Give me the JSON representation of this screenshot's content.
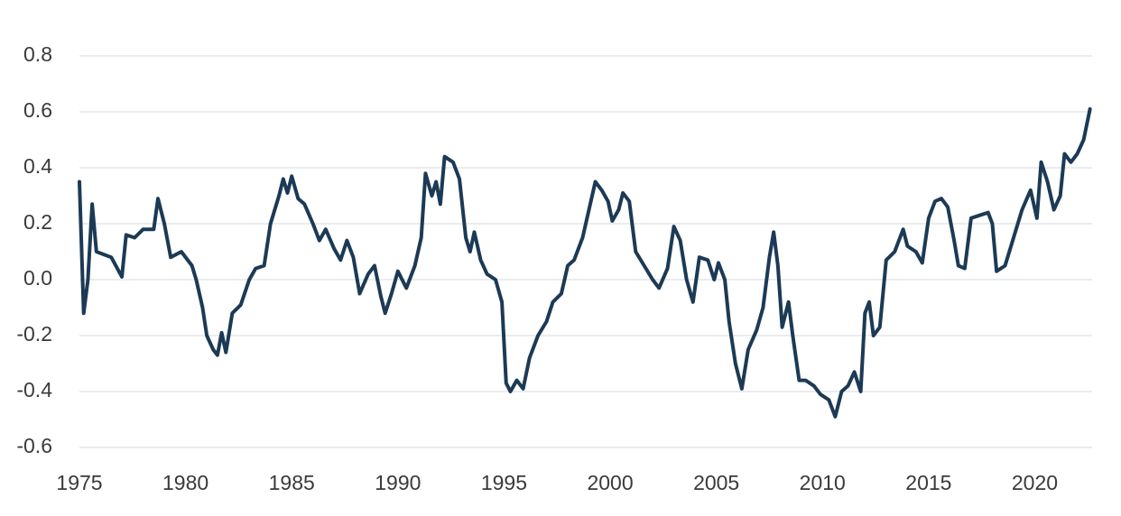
{
  "chart_data": {
    "type": "line",
    "x": [
      1975.0,
      1975.2,
      1975.4,
      1975.6,
      1975.8,
      1976.5,
      1977.0,
      1977.2,
      1977.6,
      1978.0,
      1978.5,
      1978.7,
      1979.0,
      1979.3,
      1979.8,
      1980.3,
      1980.5,
      1980.8,
      1981.0,
      1981.3,
      1981.5,
      1981.7,
      1981.9,
      1982.2,
      1982.6,
      1983.0,
      1983.3,
      1983.7,
      1984.0,
      1984.4,
      1984.6,
      1984.8,
      1985.0,
      1985.3,
      1985.6,
      1986.0,
      1986.3,
      1986.6,
      1987.0,
      1987.3,
      1987.6,
      1987.9,
      1988.2,
      1988.6,
      1988.9,
      1989.2,
      1989.4,
      1989.7,
      1990.0,
      1990.4,
      1990.8,
      1991.1,
      1991.3,
      1991.6,
      1991.8,
      1992.0,
      1992.2,
      1992.6,
      1992.9,
      1993.2,
      1993.4,
      1993.6,
      1993.9,
      1994.2,
      1994.6,
      1994.9,
      1995.1,
      1995.3,
      1995.6,
      1995.9,
      1996.2,
      1996.6,
      1997.0,
      1997.3,
      1997.7,
      1998.0,
      1998.3,
      1998.7,
      1999.0,
      1999.3,
      1999.6,
      1999.9,
      2000.1,
      2000.4,
      2000.6,
      2000.9,
      2001.2,
      2001.6,
      2002.0,
      2002.3,
      2002.7,
      2003.0,
      2003.3,
      2003.6,
      2003.9,
      2004.2,
      2004.6,
      2004.9,
      2005.1,
      2005.4,
      2005.6,
      2005.9,
      2006.2,
      2006.5,
      2006.9,
      2007.2,
      2007.5,
      2007.7,
      2007.9,
      2008.1,
      2008.4,
      2008.6,
      2008.9,
      2009.2,
      2009.6,
      2009.9,
      2010.3,
      2010.6,
      2010.9,
      2011.2,
      2011.5,
      2011.8,
      2012.0,
      2012.2,
      2012.4,
      2012.7,
      2013.0,
      2013.4,
      2013.8,
      2014.0,
      2014.4,
      2014.7,
      2015.0,
      2015.3,
      2015.6,
      2015.9,
      2016.2,
      2016.4,
      2016.7,
      2017.0,
      2017.4,
      2017.8,
      2018.0,
      2018.2,
      2018.6,
      2019.0,
      2019.4,
      2019.8,
      2020.1,
      2020.3,
      2020.6,
      2020.9,
      2021.2,
      2021.4,
      2021.7,
      2022.0,
      2022.3,
      2022.6
    ],
    "series": [
      {
        "color": "#1c3a55",
        "values": [
          0.35,
          -0.12,
          0.0,
          0.27,
          0.1,
          0.08,
          0.01,
          0.16,
          0.15,
          0.18,
          0.18,
          0.29,
          0.2,
          0.08,
          0.1,
          0.05,
          0.0,
          -0.1,
          -0.2,
          -0.25,
          -0.27,
          -0.19,
          -0.26,
          -0.12,
          -0.09,
          0.0,
          0.04,
          0.05,
          0.2,
          0.3,
          0.36,
          0.31,
          0.37,
          0.29,
          0.27,
          0.2,
          0.14,
          0.18,
          0.11,
          0.07,
          0.14,
          0.08,
          -0.05,
          0.02,
          0.05,
          -0.06,
          -0.12,
          -0.05,
          0.03,
          -0.03,
          0.05,
          0.15,
          0.38,
          0.3,
          0.35,
          0.27,
          0.44,
          0.42,
          0.36,
          0.15,
          0.1,
          0.17,
          0.07,
          0.02,
          0.0,
          -0.08,
          -0.37,
          -0.4,
          -0.36,
          -0.39,
          -0.28,
          -0.2,
          -0.15,
          -0.08,
          -0.05,
          0.05,
          0.07,
          0.15,
          0.25,
          0.35,
          0.32,
          0.28,
          0.21,
          0.25,
          0.31,
          0.28,
          0.1,
          0.05,
          0.0,
          -0.03,
          0.04,
          0.19,
          0.14,
          0.0,
          -0.08,
          0.08,
          0.07,
          0.0,
          0.06,
          0.0,
          -0.15,
          -0.3,
          -0.39,
          -0.25,
          -0.18,
          -0.1,
          0.08,
          0.17,
          0.05,
          -0.17,
          -0.08,
          -0.2,
          -0.36,
          -0.36,
          -0.38,
          -0.41,
          -0.43,
          -0.49,
          -0.4,
          -0.38,
          -0.33,
          -0.4,
          -0.12,
          -0.08,
          -0.2,
          -0.17,
          0.07,
          0.1,
          0.18,
          0.12,
          0.1,
          0.06,
          0.22,
          0.28,
          0.29,
          0.26,
          0.14,
          0.05,
          0.04,
          0.22,
          0.23,
          0.24,
          0.2,
          0.03,
          0.05,
          0.15,
          0.25,
          0.32,
          0.22,
          0.42,
          0.35,
          0.25,
          0.3,
          0.45,
          0.42,
          0.45,
          0.5,
          0.61
        ]
      }
    ],
    "xlim": [
      1975,
      2022.7
    ],
    "xticks": [
      1975,
      1980,
      1985,
      1990,
      1995,
      2000,
      2005,
      2010,
      2015,
      2020
    ],
    "ylim": [
      -0.6,
      0.8
    ],
    "yticks": [
      -0.6,
      -0.4,
      -0.2,
      {
        "value": 0,
        "label": "0.0"
      },
      0.2,
      0.4,
      0.6,
      0.8
    ],
    "grid": true
  }
}
